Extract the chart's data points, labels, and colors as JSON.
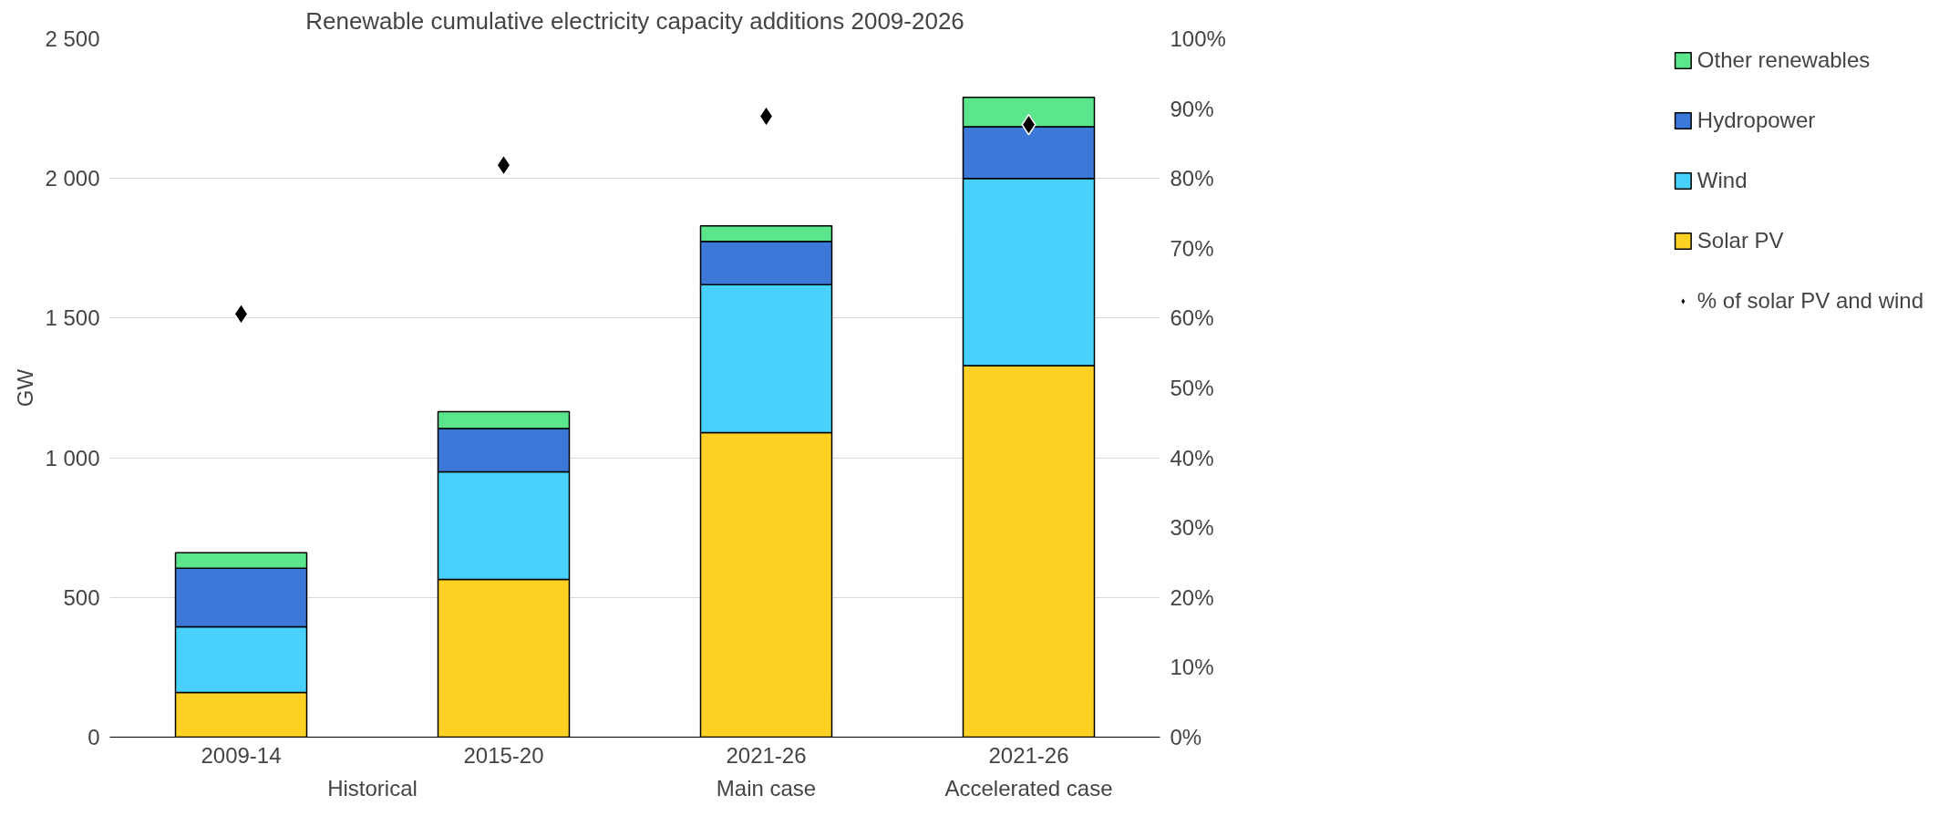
{
  "chart_data": {
    "type": "bar",
    "title": "Renewable cumulative electricity capacity additions 2009-2026",
    "ylabel": "GW",
    "stacked": true,
    "categories": [
      "2009-14",
      "2015-20",
      "2021-26",
      "2021-26"
    ],
    "annotations": [
      "Historical",
      "Main case",
      "Accelerated case"
    ],
    "series": [
      {
        "name": "Solar PV",
        "color": "#fdd225",
        "values": [
          160,
          565,
          1090,
          1330
        ]
      },
      {
        "name": "Wind",
        "color": "#48d1fc",
        "values": [
          235,
          385,
          530,
          670
        ]
      },
      {
        "name": "Hydropower",
        "color": "#3c78d8",
        "values": [
          210,
          155,
          155,
          185
        ]
      },
      {
        "name": "Other renewables",
        "color": "#5ce68c",
        "values": [
          55,
          60,
          55,
          105
        ]
      },
      {
        "name": "% of solar PV and wind",
        "type": "scatter",
        "axis": "y2",
        "marker": "diamond",
        "color": "#000000",
        "values": [
          60.6,
          81.9,
          88.9,
          87.7
        ]
      }
    ],
    "ylim": [
      0,
      2500
    ],
    "yticks": [
      0,
      {
        "value": 500,
        "label": "500"
      },
      {
        "value": 1000,
        "label": "1 000"
      },
      {
        "value": 1500,
        "label": "1 500"
      },
      {
        "value": 2000,
        "label": "2 000"
      },
      {
        "value": 2500,
        "label": "2 500"
      }
    ],
    "y2lim": [
      0,
      100
    ],
    "y2ticks": [
      {
        "value": 0,
        "label": "0%"
      },
      {
        "value": 10,
        "label": "10%"
      },
      {
        "value": 20,
        "label": "20%"
      },
      {
        "value": 30,
        "label": "30%"
      },
      {
        "value": 40,
        "label": "40%"
      },
      {
        "value": 50,
        "label": "50%"
      },
      {
        "value": 60,
        "label": "60%"
      },
      {
        "value": 70,
        "label": "70%"
      },
      {
        "value": 80,
        "label": "80%"
      },
      {
        "value": 90,
        "label": "90%"
      },
      {
        "value": 100,
        "label": "100%"
      }
    ],
    "grid": "y",
    "legend": "right"
  }
}
